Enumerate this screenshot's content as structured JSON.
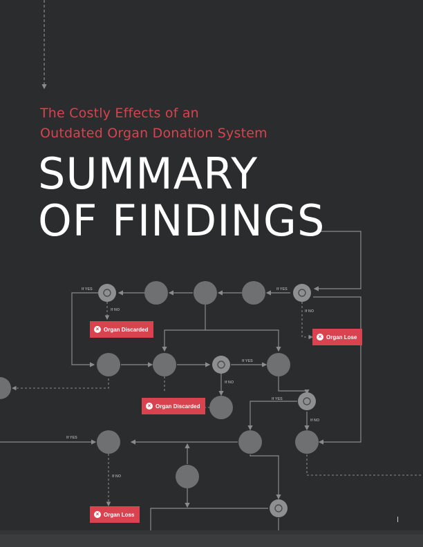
{
  "cover": {
    "subtitle_line1": "The Costly Effects of an",
    "subtitle_line2": "Outdated Organ Donation System",
    "title_line1": "SUMMARY",
    "title_line2": "OF FINDINGS"
  },
  "flowchart": {
    "labels": {
      "if_yes": "If YES",
      "if_no": "If NO"
    },
    "outcomes": [
      "Organ Discarded",
      "Organ Lose",
      "Organ Discarded",
      "Organ Loss"
    ],
    "colors": {
      "background": "#2a2c2e",
      "accent": "#d9434f",
      "node": "#6f7072",
      "line": "#8a8b8d"
    }
  }
}
